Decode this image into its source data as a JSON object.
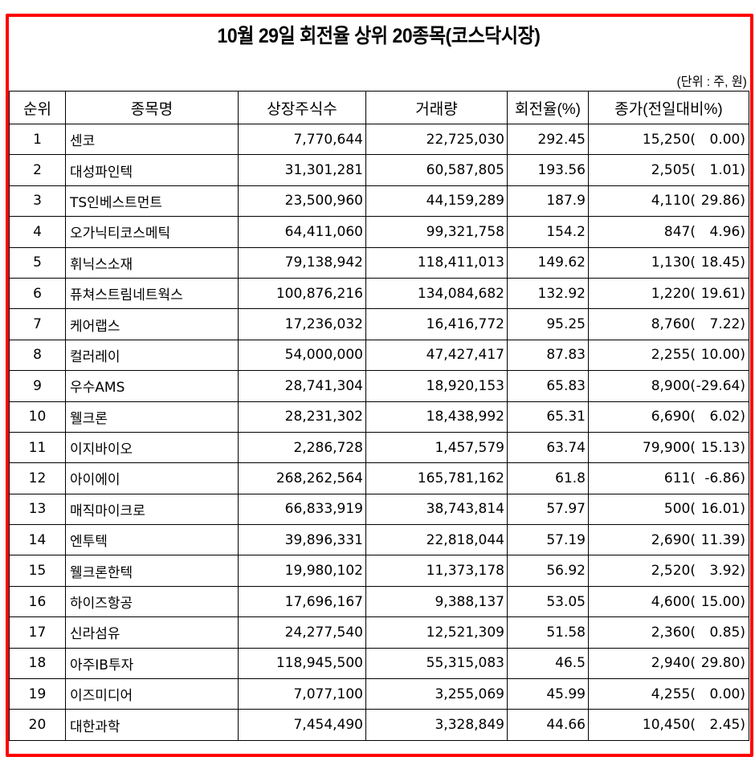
{
  "title": "10월 29일 회전율 상위 20종목(코스닥시장)",
  "unit_note": "(단위 : 주, 원)",
  "colors": {
    "frame": "#ff0000",
    "grid": "#000000",
    "background": "#ffffff"
  },
  "table": {
    "headers": [
      "순위",
      "종목명",
      "상장주식수",
      "거래량",
      "회전율(%)",
      "종가(전일대비%)"
    ],
    "rows": [
      {
        "rank": "1",
        "name": "센코",
        "listed_shares": "7,770,644",
        "volume": "22,725,030",
        "turnover": "292.45",
        "close": "15,250(",
        "change": "0.00)"
      },
      {
        "rank": "2",
        "name": "대성파인텍",
        "listed_shares": "31,301,281",
        "volume": "60,587,805",
        "turnover": "193.56",
        "close": "2,505(",
        "change": "1.01)"
      },
      {
        "rank": "3",
        "name": "TS인베스트먼트",
        "listed_shares": "23,500,960",
        "volume": "44,159,289",
        "turnover": "187.9",
        "close": "4,110(",
        "change": "29.86)"
      },
      {
        "rank": "4",
        "name": "오가닉티코스메틱",
        "listed_shares": "64,411,060",
        "volume": "99,321,758",
        "turnover": "154.2",
        "close": "847(",
        "change": "4.96)"
      },
      {
        "rank": "5",
        "name": "휘닉스소재",
        "listed_shares": "79,138,942",
        "volume": "118,411,013",
        "turnover": "149.62",
        "close": "1,130(",
        "change": "18.45)"
      },
      {
        "rank": "6",
        "name": "퓨쳐스트림네트웍스",
        "listed_shares": "100,876,216",
        "volume": "134,084,682",
        "turnover": "132.92",
        "close": "1,220(",
        "change": "19.61)"
      },
      {
        "rank": "7",
        "name": "케어랩스",
        "listed_shares": "17,236,032",
        "volume": "16,416,772",
        "turnover": "95.25",
        "close": "8,760(",
        "change": "7.22)"
      },
      {
        "rank": "8",
        "name": "컬러레이",
        "listed_shares": "54,000,000",
        "volume": "47,427,417",
        "turnover": "87.83",
        "close": "2,255(",
        "change": "10.00)"
      },
      {
        "rank": "9",
        "name": "우수AMS",
        "listed_shares": "28,741,304",
        "volume": "18,920,153",
        "turnover": "65.83",
        "close": "8,900(",
        "change": "-29.64)"
      },
      {
        "rank": "10",
        "name": "웰크론",
        "listed_shares": "28,231,302",
        "volume": "18,438,992",
        "turnover": "65.31",
        "close": "6,690(",
        "change": "6.02)"
      },
      {
        "rank": "11",
        "name": "이지바이오",
        "listed_shares": "2,286,728",
        "volume": "1,457,579",
        "turnover": "63.74",
        "close": "79,900(",
        "change": "15.13)"
      },
      {
        "rank": "12",
        "name": "아이에이",
        "listed_shares": "268,262,564",
        "volume": "165,781,162",
        "turnover": "61.8",
        "close": "611(",
        "change": "-6.86)"
      },
      {
        "rank": "13",
        "name": "매직마이크로",
        "listed_shares": "66,833,919",
        "volume": "38,743,814",
        "turnover": "57.97",
        "close": "500(",
        "change": "16.01)"
      },
      {
        "rank": "14",
        "name": "엔투텍",
        "listed_shares": "39,896,331",
        "volume": "22,818,044",
        "turnover": "57.19",
        "close": "2,690(",
        "change": "11.39)"
      },
      {
        "rank": "15",
        "name": "웰크론한텍",
        "listed_shares": "19,980,102",
        "volume": "11,373,178",
        "turnover": "56.92",
        "close": "2,520(",
        "change": "3.92)"
      },
      {
        "rank": "16",
        "name": "하이즈항공",
        "listed_shares": "17,696,167",
        "volume": "9,388,137",
        "turnover": "53.05",
        "close": "4,600(",
        "change": "15.00)"
      },
      {
        "rank": "17",
        "name": "신라섬유",
        "listed_shares": "24,277,540",
        "volume": "12,521,309",
        "turnover": "51.58",
        "close": "2,360(",
        "change": "0.85)"
      },
      {
        "rank": "18",
        "name": "아주IB투자",
        "listed_shares": "118,945,500",
        "volume": "55,315,083",
        "turnover": "46.5",
        "close": "2,940(",
        "change": "29.80)"
      },
      {
        "rank": "19",
        "name": "이즈미디어",
        "listed_shares": "7,077,100",
        "volume": "3,255,069",
        "turnover": "45.99",
        "close": "4,255(",
        "change": "0.00)"
      },
      {
        "rank": "20",
        "name": "대한과학",
        "listed_shares": "7,454,490",
        "volume": "3,328,849",
        "turnover": "44.66",
        "close": "10,450(",
        "change": "2.45)"
      }
    ]
  }
}
